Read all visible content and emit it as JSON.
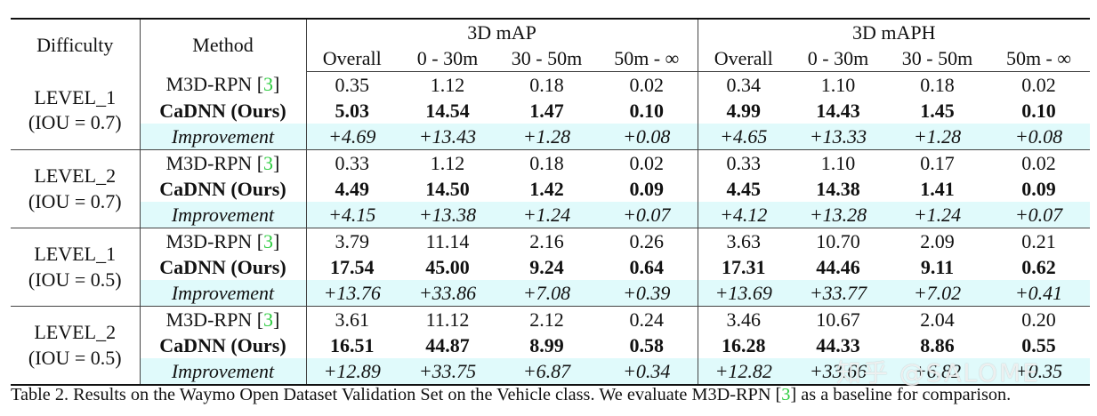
{
  "table": {
    "headers": {
      "difficulty": "Difficulty",
      "method": "Method",
      "groups": [
        "3D mAP",
        "3D mAPH"
      ],
      "columns": [
        "Overall",
        "0 - 30m",
        "30 - 50m",
        "50m - ∞",
        "Overall",
        "0 - 30m",
        "30 - 50m",
        "50m - ∞"
      ]
    },
    "groups": [
      {
        "difficulty": "LEVEL_1",
        "iou": "(IOU = 0.7)",
        "baseline": {
          "method": "M3D-RPN",
          "cite": "3",
          "values": [
            "0.35",
            "1.12",
            "0.18",
            "0.02",
            "0.34",
            "1.10",
            "0.18",
            "0.02"
          ]
        },
        "ours": {
          "method": "CaDNN (Ours)",
          "values": [
            "5.03",
            "14.54",
            "1.47",
            "0.10",
            "4.99",
            "14.43",
            "1.45",
            "0.10"
          ]
        },
        "improvement": {
          "label": "Improvement",
          "values": [
            "+4.69",
            "+13.43",
            "+1.28",
            "+0.08",
            "+4.65",
            "+13.33",
            "+1.28",
            "+0.08"
          ]
        }
      },
      {
        "difficulty": "LEVEL_2",
        "iou": "(IOU = 0.7)",
        "baseline": {
          "method": "M3D-RPN",
          "cite": "3",
          "values": [
            "0.33",
            "1.12",
            "0.18",
            "0.02",
            "0.33",
            "1.10",
            "0.17",
            "0.02"
          ]
        },
        "ours": {
          "method": "CaDNN (Ours)",
          "values": [
            "4.49",
            "14.50",
            "1.42",
            "0.09",
            "4.45",
            "14.38",
            "1.41",
            "0.09"
          ]
        },
        "improvement": {
          "label": "Improvement",
          "values": [
            "+4.15",
            "+13.38",
            "+1.24",
            "+0.07",
            "+4.12",
            "+13.28",
            "+1.24",
            "+0.07"
          ]
        }
      },
      {
        "difficulty": "LEVEL_1",
        "iou": "(IOU = 0.5)",
        "baseline": {
          "method": "M3D-RPN",
          "cite": "3",
          "values": [
            "3.79",
            "11.14",
            "2.16",
            "0.26",
            "3.63",
            "10.70",
            "2.09",
            "0.21"
          ]
        },
        "ours": {
          "method": "CaDNN (Ours)",
          "values": [
            "17.54",
            "45.00",
            "9.24",
            "0.64",
            "17.31",
            "44.46",
            "9.11",
            "0.62"
          ]
        },
        "improvement": {
          "label": "Improvement",
          "values": [
            "+13.76",
            "+33.86",
            "+7.08",
            "+0.39",
            "+13.69",
            "+33.77",
            "+7.02",
            "+0.41"
          ]
        }
      },
      {
        "difficulty": "LEVEL_2",
        "iou": "(IOU = 0.5)",
        "baseline": {
          "method": "M3D-RPN",
          "cite": "3",
          "values": [
            "3.61",
            "11.12",
            "2.12",
            "0.24",
            "3.46",
            "10.67",
            "2.04",
            "0.20"
          ]
        },
        "ours": {
          "method": "CaDNN (Ours)",
          "values": [
            "16.51",
            "44.87",
            "8.99",
            "0.58",
            "16.28",
            "44.33",
            "8.86",
            "0.55"
          ]
        },
        "improvement": {
          "label": "Improvement",
          "values": [
            "+12.89",
            "+33.75",
            "+6.87",
            "+0.34",
            "+12.82",
            "+33.66",
            "+6.82",
            "+0.35"
          ]
        }
      }
    ]
  },
  "caption": {
    "prefix": "Table 2. Results on the Waymo Open Dataset Validation Set on the Vehicle class. We evaluate M3D-RPN [",
    "cite": "3",
    "suffix": "] as a baseline for comparison."
  },
  "watermark": "知乎 @SALOME",
  "colors": {
    "improvement_bg": "#e0fafb",
    "citation": "#2ecc40",
    "text": "#111111"
  }
}
